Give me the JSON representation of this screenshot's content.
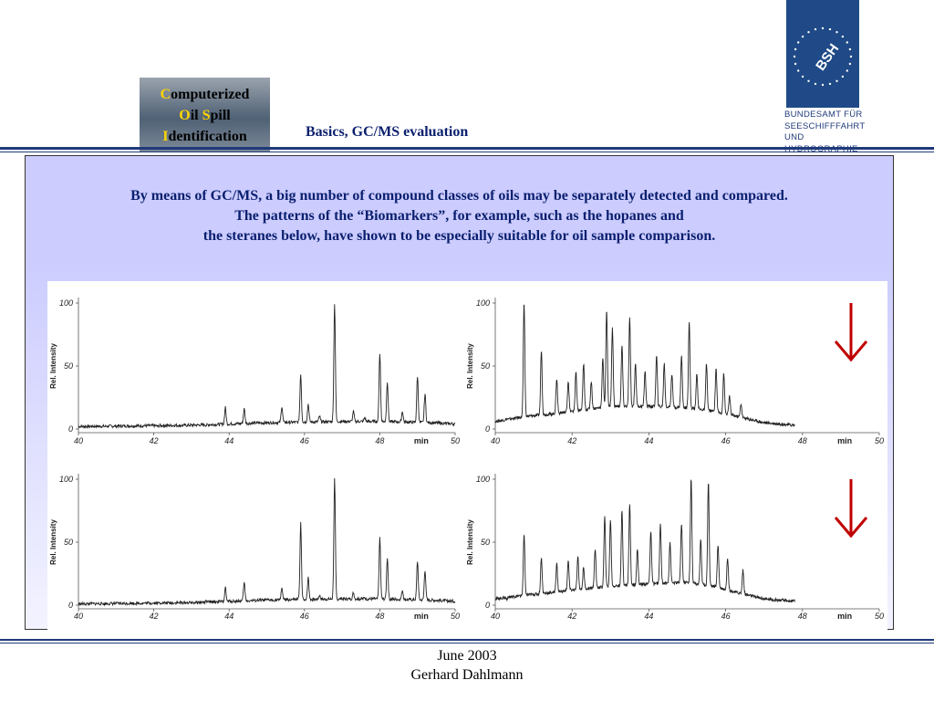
{
  "cosi": {
    "line1": {
      "initial": "C",
      "rest": "omputerized"
    },
    "line2": {
      "initial1": "O",
      "mid": "il ",
      "initial2": "S",
      "rest": "pill"
    },
    "line3": {
      "initial": "I",
      "rest": "dentification"
    }
  },
  "header": {
    "subtitle": "Basics, GC/MS evaluation"
  },
  "logo": {
    "mark": "BSH",
    "text": [
      "BUNDESAMT FÜR",
      "SEESCHIFFFAHRT",
      "UND",
      "HYDROGRAPHIE"
    ]
  },
  "intro": [
    "By means of GC/MS, a big number of compound classes of oils may be separately detected and compared.",
    "The patterns of the “Biomarkers”, for example, such as the hopanes and",
    "the steranes below, have shown to be especially suitable for oil sample comparison."
  ],
  "footer": {
    "date": "June 2003",
    "author": "Gerhard Dahlmann"
  },
  "colors": {
    "title": "#0a1f6e",
    "arrow": "#c00000",
    "rule": "#1f3a7a",
    "panel": "#ccccff"
  },
  "chart_data": [
    {
      "type": "line",
      "ylabel": "Rel. Intensity",
      "xlabel": "min",
      "xlim": [
        40,
        50
      ],
      "ylim": [
        0,
        100
      ],
      "xticks": [
        "40",
        "42",
        "44",
        "46",
        "48",
        "min",
        "50"
      ],
      "yticks": [
        "0",
        "50",
        "100"
      ],
      "marker": "none",
      "baseline": [
        [
          40,
          2
        ],
        [
          43,
          3
        ],
        [
          45,
          5
        ],
        [
          47,
          6
        ],
        [
          48,
          6
        ],
        [
          49.4,
          5
        ],
        [
          50,
          4
        ]
      ],
      "peaks": [
        [
          40.7,
          2
        ],
        [
          42.1,
          2
        ],
        [
          42.7,
          2.5
        ],
        [
          43.4,
          3
        ],
        [
          43.9,
          17
        ],
        [
          44.4,
          16
        ],
        [
          45.4,
          18
        ],
        [
          45.9,
          44
        ],
        [
          46.1,
          20
        ],
        [
          46.4,
          10
        ],
        [
          46.8,
          100
        ],
        [
          47.3,
          14
        ],
        [
          47.6,
          9
        ],
        [
          48.0,
          60
        ],
        [
          48.2,
          38
        ],
        [
          48.6,
          14
        ],
        [
          49.0,
          42
        ],
        [
          49.2,
          28
        ]
      ]
    },
    {
      "type": "line",
      "ylabel": "Rel. Intensity",
      "xlabel": "min",
      "xlim": [
        40,
        50
      ],
      "ylim": [
        0,
        100
      ],
      "xticks": [
        "40",
        "42",
        "44",
        "46",
        "48",
        "min",
        "50"
      ],
      "yticks": [
        "0",
        "50",
        "100"
      ],
      "marker": "arrow",
      "baseline": [
        [
          40,
          6
        ],
        [
          40.8,
          10
        ],
        [
          41.5,
          12
        ],
        [
          42,
          14
        ],
        [
          43,
          18
        ],
        [
          44,
          18
        ],
        [
          45,
          17
        ],
        [
          45.7,
          14
        ],
        [
          46.3,
          10
        ],
        [
          47,
          5
        ],
        [
          47.8,
          3
        ]
      ],
      "peaks": [
        [
          40.3,
          8
        ],
        [
          40.75,
          100
        ],
        [
          41.2,
          63
        ],
        [
          41.6,
          40
        ],
        [
          41.9,
          38
        ],
        [
          42.1,
          45
        ],
        [
          42.3,
          52
        ],
        [
          42.5,
          38
        ],
        [
          42.8,
          56
        ],
        [
          42.9,
          94
        ],
        [
          43.05,
          80
        ],
        [
          43.3,
          66
        ],
        [
          43.5,
          88
        ],
        [
          43.65,
          52
        ],
        [
          43.9,
          46
        ],
        [
          44.2,
          58
        ],
        [
          44.4,
          52
        ],
        [
          44.6,
          44
        ],
        [
          44.85,
          58
        ],
        [
          45.05,
          86
        ],
        [
          45.25,
          44
        ],
        [
          45.5,
          52
        ],
        [
          45.75,
          48
        ],
        [
          45.95,
          44
        ],
        [
          46.1,
          26
        ],
        [
          46.4,
          20
        ]
      ]
    },
    {
      "type": "line",
      "ylabel": "Rel. Intensity",
      "xlabel": "min",
      "xlim": [
        40,
        50
      ],
      "ylim": [
        0,
        100
      ],
      "xticks": [
        "40",
        "42",
        "44",
        "46",
        "48",
        "min",
        "50"
      ],
      "yticks": [
        "0",
        "50",
        "100"
      ],
      "marker": "none",
      "baseline": [
        [
          40,
          1
        ],
        [
          43,
          2
        ],
        [
          45,
          4
        ],
        [
          47,
          5
        ],
        [
          48,
          5
        ],
        [
          49.4,
          4
        ],
        [
          50,
          3
        ]
      ],
      "peaks": [
        [
          40.7,
          1
        ],
        [
          42.2,
          2
        ],
        [
          43.4,
          3
        ],
        [
          43.9,
          14
        ],
        [
          44.4,
          18
        ],
        [
          45.4,
          14
        ],
        [
          45.9,
          65
        ],
        [
          46.1,
          22
        ],
        [
          46.4,
          8
        ],
        [
          46.8,
          100
        ],
        [
          47.3,
          10
        ],
        [
          47.6,
          6
        ],
        [
          48.0,
          53
        ],
        [
          48.2,
          38
        ],
        [
          48.6,
          12
        ],
        [
          49.0,
          35
        ],
        [
          49.2,
          28
        ]
      ]
    },
    {
      "type": "line",
      "ylabel": "Rel. Intensity",
      "xlabel": "min",
      "xlim": [
        40,
        50
      ],
      "ylim": [
        0,
        100
      ],
      "xticks": [
        "40",
        "42",
        "44",
        "46",
        "48",
        "min",
        "50"
      ],
      "yticks": [
        "0",
        "50",
        "100"
      ],
      "marker": "arrow",
      "baseline": [
        [
          40,
          5
        ],
        [
          40.8,
          8
        ],
        [
          41.5,
          10
        ],
        [
          42,
          12
        ],
        [
          43,
          15
        ],
        [
          44,
          17
        ],
        [
          45,
          18
        ],
        [
          45.7,
          15
        ],
        [
          46.3,
          10
        ],
        [
          47,
          5
        ],
        [
          47.8,
          3
        ]
      ],
      "peaks": [
        [
          40.3,
          5
        ],
        [
          40.75,
          56
        ],
        [
          41.2,
          38
        ],
        [
          41.6,
          33
        ],
        [
          41.9,
          35
        ],
        [
          42.15,
          38
        ],
        [
          42.3,
          30
        ],
        [
          42.6,
          45
        ],
        [
          42.85,
          70
        ],
        [
          43.0,
          68
        ],
        [
          43.3,
          75
        ],
        [
          43.5,
          80
        ],
        [
          43.7,
          44
        ],
        [
          44.05,
          58
        ],
        [
          44.3,
          64
        ],
        [
          44.55,
          50
        ],
        [
          44.85,
          65
        ],
        [
          45.1,
          100
        ],
        [
          45.35,
          52
        ],
        [
          45.55,
          98
        ],
        [
          45.8,
          48
        ],
        [
          46.05,
          38
        ],
        [
          46.45,
          28
        ]
      ]
    }
  ]
}
